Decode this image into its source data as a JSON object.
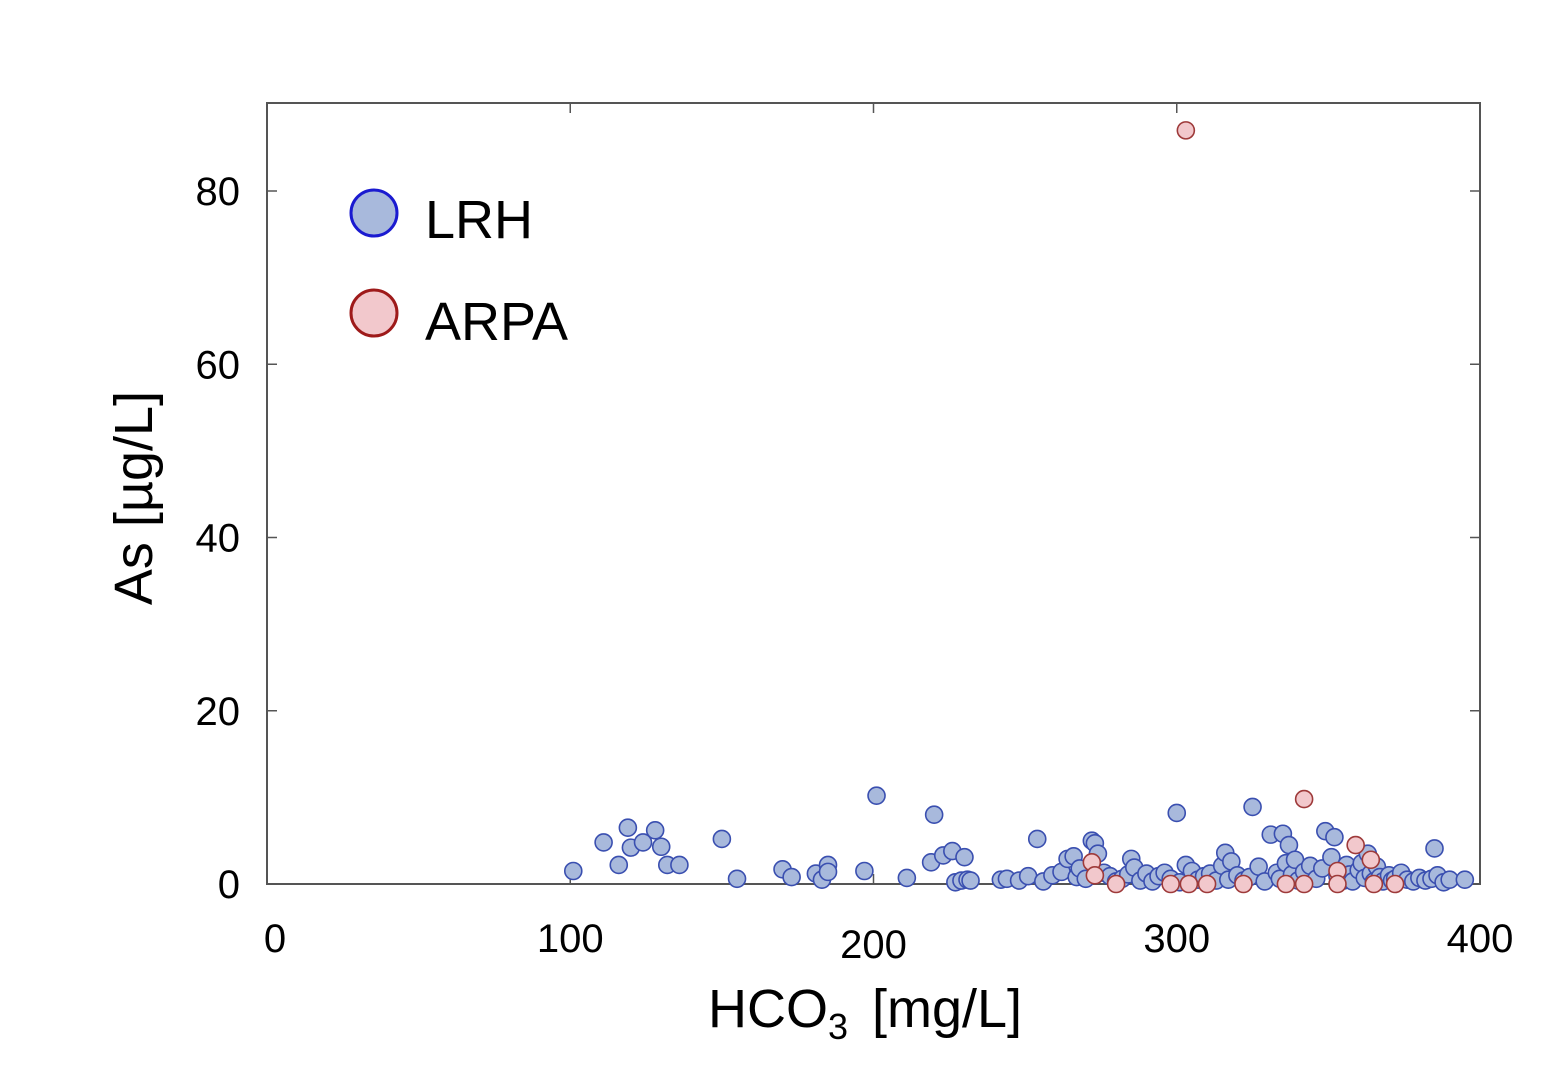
{
  "chart_data": {
    "type": "scatter",
    "xlabel": "HCO",
    "xlabel_subscript": "3",
    "xlabel_unit": "[mg/L]",
    "ylabel": "As [µg/L]",
    "xlim": [
      0,
      400
    ],
    "ylim": [
      0,
      90
    ],
    "xticks": [
      0,
      100,
      200,
      300,
      400
    ],
    "yticks": [
      0,
      20,
      40,
      60,
      80
    ],
    "grid": false,
    "legend_position": "top-left",
    "series": [
      {
        "name": "LRH",
        "fill": "#a8b9dc",
        "stroke": "#3a4fb0",
        "points": [
          [
            101,
            1.5
          ],
          [
            111,
            4.8
          ],
          [
            116,
            2.2
          ],
          [
            119,
            6.5
          ],
          [
            120,
            4.2
          ],
          [
            124,
            4.8
          ],
          [
            128,
            6.2
          ],
          [
            130,
            4.3
          ],
          [
            132,
            2.2
          ],
          [
            136,
            2.2
          ],
          [
            150,
            5.2
          ],
          [
            155,
            0.6
          ],
          [
            170,
            1.7
          ],
          [
            173,
            0.8
          ],
          [
            181,
            1.2
          ],
          [
            183,
            0.5
          ],
          [
            185,
            2.2
          ],
          [
            185,
            1.4
          ],
          [
            197,
            1.5
          ],
          [
            201,
            10.2
          ],
          [
            211,
            0.7
          ],
          [
            219,
            2.5
          ],
          [
            220,
            8.0
          ],
          [
            223,
            3.3
          ],
          [
            226,
            3.8
          ],
          [
            227,
            0.2
          ],
          [
            229,
            0.4
          ],
          [
            230,
            3.1
          ],
          [
            231,
            0.5
          ],
          [
            232,
            0.4
          ],
          [
            242,
            0.5
          ],
          [
            244,
            0.6
          ],
          [
            248,
            0.4
          ],
          [
            251,
            0.9
          ],
          [
            254,
            5.2
          ],
          [
            256,
            0.3
          ],
          [
            259,
            1.0
          ],
          [
            262,
            1.4
          ],
          [
            264,
            2.9
          ],
          [
            266,
            3.2
          ],
          [
            267,
            0.8
          ],
          [
            268,
            1.8
          ],
          [
            270,
            0.6
          ],
          [
            272,
            5.0
          ],
          [
            273,
            4.7
          ],
          [
            274,
            3.5
          ],
          [
            276,
            1.3
          ],
          [
            278,
            0.9
          ],
          [
            280,
            0.3
          ],
          [
            282,
            0.6
          ],
          [
            284,
            1.1
          ],
          [
            285,
            2.9
          ],
          [
            286,
            1.9
          ],
          [
            288,
            0.4
          ],
          [
            290,
            1.2
          ],
          [
            292,
            0.3
          ],
          [
            294,
            0.9
          ],
          [
            296,
            1.3
          ],
          [
            298,
            0.6
          ],
          [
            300,
            8.2
          ],
          [
            301,
            0.2
          ],
          [
            303,
            2.2
          ],
          [
            305,
            1.5
          ],
          [
            307,
            0.5
          ],
          [
            309,
            0.9
          ],
          [
            311,
            1.2
          ],
          [
            313,
            0.4
          ],
          [
            315,
            2.1
          ],
          [
            316,
            3.6
          ],
          [
            317,
            0.5
          ],
          [
            318,
            2.6
          ],
          [
            320,
            1.0
          ],
          [
            322,
            0.4
          ],
          [
            324,
            0.8
          ],
          [
            325,
            8.9
          ],
          [
            327,
            2.0
          ],
          [
            329,
            0.3
          ],
          [
            331,
            5.7
          ],
          [
            333,
            1.3
          ],
          [
            334,
            0.6
          ],
          [
            335,
            5.8
          ],
          [
            336,
            2.4
          ],
          [
            337,
            4.5
          ],
          [
            338,
            1.1
          ],
          [
            339,
            2.8
          ],
          [
            340,
            0.4
          ],
          [
            342,
            1.4
          ],
          [
            344,
            2.1
          ],
          [
            346,
            0.6
          ],
          [
            348,
            1.8
          ],
          [
            349,
            6.1
          ],
          [
            351,
            3.1
          ],
          [
            352,
            5.4
          ],
          [
            353,
            0.9
          ],
          [
            355,
            0.4
          ],
          [
            356,
            2.2
          ],
          [
            357,
            1.1
          ],
          [
            358,
            0.3
          ],
          [
            360,
            1.6
          ],
          [
            361,
            2.4
          ],
          [
            362,
            0.7
          ],
          [
            363,
            3.5
          ],
          [
            364,
            1.2
          ],
          [
            365,
            0.3
          ],
          [
            366,
            2.0
          ],
          [
            367,
            0.8
          ],
          [
            368,
            0.3
          ],
          [
            370,
            1.0
          ],
          [
            371,
            0.4
          ],
          [
            372,
            0.6
          ],
          [
            374,
            1.3
          ],
          [
            376,
            0.5
          ],
          [
            378,
            0.3
          ],
          [
            380,
            0.7
          ],
          [
            382,
            0.4
          ],
          [
            384,
            0.6
          ],
          [
            385,
            4.1
          ],
          [
            386,
            1.0
          ],
          [
            388,
            0.2
          ],
          [
            390,
            0.5
          ],
          [
            395,
            0.5
          ]
        ]
      },
      {
        "name": "ARPA",
        "fill": "#f2c8cc",
        "stroke": "#9e3a3a",
        "points": [
          [
            303,
            87.0
          ],
          [
            272,
            2.5
          ],
          [
            273,
            1.0
          ],
          [
            280,
            0.0
          ],
          [
            298,
            0.0
          ],
          [
            304,
            0.0
          ],
          [
            310,
            0.0
          ],
          [
            322,
            0.0
          ],
          [
            336,
            0.0
          ],
          [
            342,
            0.0
          ],
          [
            342,
            9.8
          ],
          [
            353,
            1.5
          ],
          [
            353,
            0.0
          ],
          [
            359,
            4.5
          ],
          [
            364,
            2.8
          ],
          [
            365,
            0.0
          ],
          [
            372,
            0.0
          ]
        ]
      }
    ]
  }
}
